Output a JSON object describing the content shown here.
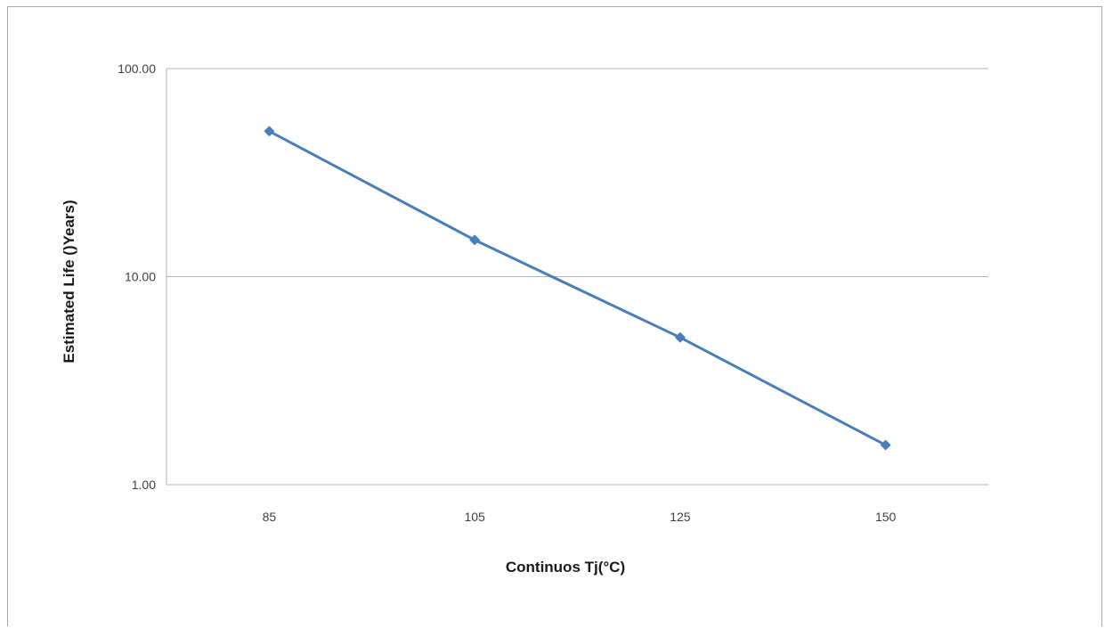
{
  "chart_data": {
    "type": "line",
    "title": "",
    "xlabel": "Continuos Tj(°C)",
    "ylabel": "Estimated Life  ()Years)",
    "yscale": "log",
    "ylim": [
      1,
      100
    ],
    "yticks": [
      "1.00",
      "10.00",
      "100.00"
    ],
    "categories": [
      "85",
      "105",
      "125",
      "150"
    ],
    "series": [
      {
        "values": [
          50,
          15,
          5.1,
          1.55
        ],
        "color": "#4a7ebb",
        "marker": "diamond"
      }
    ],
    "grid": true,
    "legend": "none"
  }
}
